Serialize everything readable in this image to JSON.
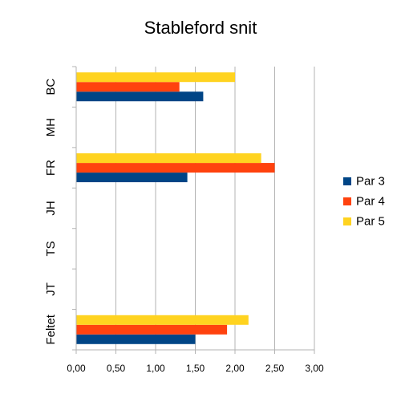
{
  "chart_data": {
    "type": "bar",
    "orientation": "horizontal",
    "title": "Stableford snit",
    "xlabel": "",
    "ylabel": "",
    "categories": [
      "BC",
      "MH",
      "FR",
      "JH",
      "TS",
      "JT",
      "Feltet"
    ],
    "series": [
      {
        "name": "Par 3",
        "color": "#004586",
        "values": [
          1.6,
          null,
          1.4,
          null,
          null,
          null,
          1.5
        ]
      },
      {
        "name": "Par 4",
        "color": "#ff420e",
        "values": [
          1.3,
          null,
          2.5,
          null,
          null,
          null,
          1.9
        ]
      },
      {
        "name": "Par 5",
        "color": "#ffd320",
        "values": [
          2.0,
          null,
          2.33,
          null,
          null,
          null,
          2.17
        ]
      }
    ],
    "xlim": [
      0,
      3
    ],
    "xticks": [
      "0,00",
      "0,50",
      "1,00",
      "1,50",
      "2,00",
      "2,50",
      "3,00"
    ],
    "grid": true,
    "legend_position": "right"
  }
}
